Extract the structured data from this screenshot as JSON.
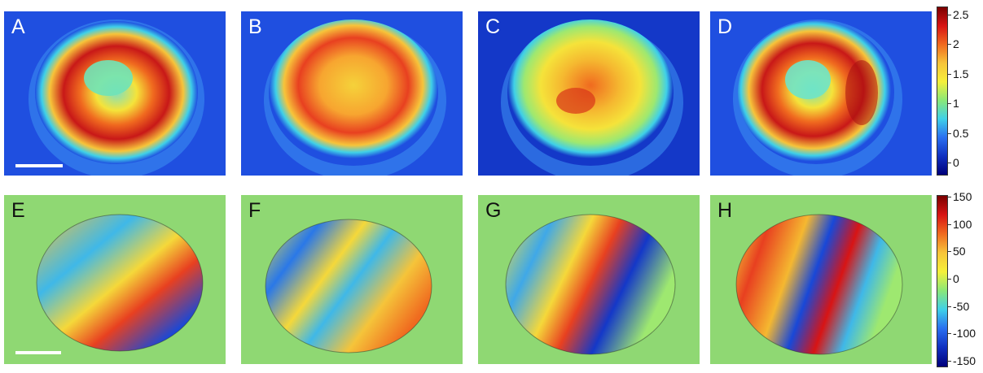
{
  "panels_top": [
    {
      "label": "A",
      "pattern": "ring"
    },
    {
      "label": "B",
      "pattern": "flat"
    },
    {
      "label": "C",
      "pattern": "textured"
    },
    {
      "label": "D",
      "pattern": "ring-offset"
    }
  ],
  "panels_bottom": [
    {
      "label": "E"
    },
    {
      "label": "F"
    },
    {
      "label": "G"
    },
    {
      "label": "H"
    }
  ],
  "colorbar_top": {
    "ticks": [
      "2.5",
      "2",
      "1.5",
      "1",
      "0.5",
      "0"
    ],
    "colormap": "jet"
  },
  "colorbar_bottom": {
    "ticks": [
      "150",
      "100",
      "50",
      "0",
      "-50",
      "-100",
      "-150"
    ],
    "colormap": "jet"
  },
  "colors": {
    "background_top": "#1f4fe0",
    "background_bottom": "#8fd873",
    "scalebar": "#ffffff"
  }
}
